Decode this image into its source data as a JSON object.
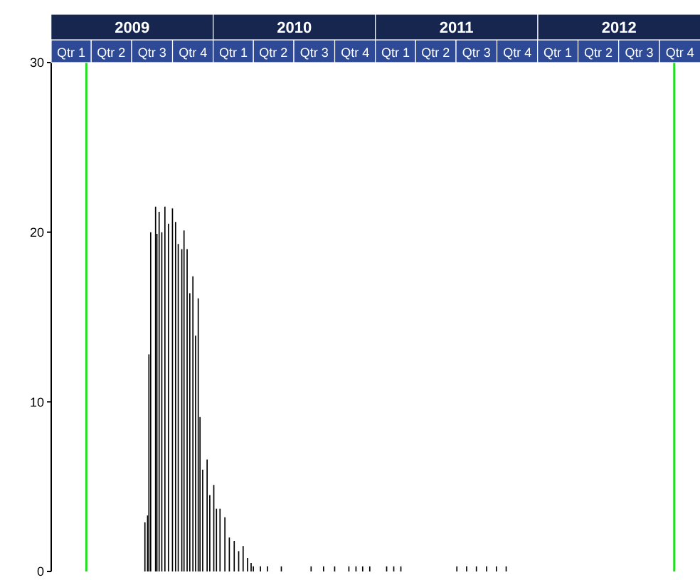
{
  "chart_data": {
    "type": "bar",
    "x": [
      "2009-07-31",
      "2009-08-06",
      "2009-08-09",
      "2009-08-13",
      "2009-08-24",
      "2009-08-27",
      "2009-09-01",
      "2009-09-07",
      "2009-09-14",
      "2009-09-22",
      "2009-10-01",
      "2009-10-08",
      "2009-10-14",
      "2009-10-22",
      "2009-10-27",
      "2009-11-03",
      "2009-11-09",
      "2009-11-16",
      "2009-11-22",
      "2009-11-28",
      "2009-12-02",
      "2009-12-08",
      "2009-12-18",
      "2009-12-24",
      "2010-01-02",
      "2010-01-08",
      "2010-01-16",
      "2010-01-27",
      "2010-02-06",
      "2010-02-17",
      "2010-02-27",
      "2010-03-09",
      "2010-03-19",
      "2010-03-27",
      "2010-04-01",
      "2010-04-17",
      "2010-05-03",
      "2010-06-03",
      "2010-08-09",
      "2010-09-06",
      "2010-10-01",
      "2010-11-02",
      "2010-11-18",
      "2010-12-03",
      "2010-12-19",
      "2011-01-26",
      "2011-02-11",
      "2011-02-27",
      "2011-07-03",
      "2011-07-25",
      "2011-08-16",
      "2011-09-08",
      "2011-09-30",
      "2011-10-22"
    ],
    "series": [
      {
        "color": "#000000",
        "values": [
          2.9,
          3.3,
          12.8,
          20,
          21.5,
          19.9,
          21.2,
          20,
          21.5,
          20.5,
          21.4,
          20.6,
          19.3,
          19,
          20.1,
          19,
          16.4,
          17.4,
          13.9,
          16.1,
          9.1,
          6,
          6.6,
          4.5,
          5.1,
          3.7,
          3.7,
          3.2,
          2,
          1.8,
          1.2,
          1.5,
          0.8,
          0.5,
          0.3,
          0.3,
          0.3,
          0.3,
          0.3,
          0.3,
          0.3,
          0.3,
          0.3,
          0.3,
          0.3,
          0.3,
          0.3,
          0.3,
          0.3,
          0.3,
          0.3,
          0.3,
          0.3,
          0.3
        ]
      }
    ],
    "xlim": [
      "2009-01-01",
      "2012-12-31"
    ],
    "x2lim": [
      "2009-01-01",
      "2012-12-31"
    ],
    "xticks": [
      {
        "value": "2009-02-15",
        "label": "Qtr 1"
      },
      {
        "value": "2009-05-16",
        "label": "Qtr 2"
      },
      {
        "value": "2009-08-16",
        "label": "Qtr 3"
      },
      {
        "value": "2009-11-16",
        "label": "Qtr 4"
      },
      {
        "value": "2010-02-15",
        "label": "Qtr 1"
      },
      {
        "value": "2010-05-16",
        "label": "Qtr 2"
      },
      {
        "value": "2010-08-16",
        "label": "Qtr 3"
      },
      {
        "value": "2010-11-16",
        "label": "Qtr 4"
      },
      {
        "value": "2011-02-15",
        "label": "Qtr 1"
      },
      {
        "value": "2011-05-16",
        "label": "Qtr 2"
      },
      {
        "value": "2011-08-16",
        "label": "Qtr 3"
      },
      {
        "value": "2011-11-16",
        "label": "Qtr 4"
      },
      {
        "value": "2012-02-15",
        "label": "Qtr 1"
      },
      {
        "value": "2012-05-16",
        "label": "Qtr 2"
      },
      {
        "value": "2012-08-16",
        "label": "Qtr 3"
      },
      {
        "value": "2012-11-16",
        "label": "Qtr 4"
      }
    ],
    "x2ticks": [
      {
        "value": "2009-07-02",
        "label": "2009"
      },
      {
        "value": "2010-07-02",
        "label": "2010"
      },
      {
        "value": "2011-07-02",
        "label": "2011"
      },
      {
        "value": "2012-07-02",
        "label": "2012"
      }
    ],
    "ylim": [
      0,
      30
    ],
    "yticks": [
      0,
      10,
      20,
      30
    ],
    "ref_lines": [
      {
        "axis": "x",
        "value": "2009-03-21",
        "color": "#22dd22"
      },
      {
        "axis": "x",
        "value": "2012-11-03",
        "color": "#22dd22"
      }
    ]
  }
}
